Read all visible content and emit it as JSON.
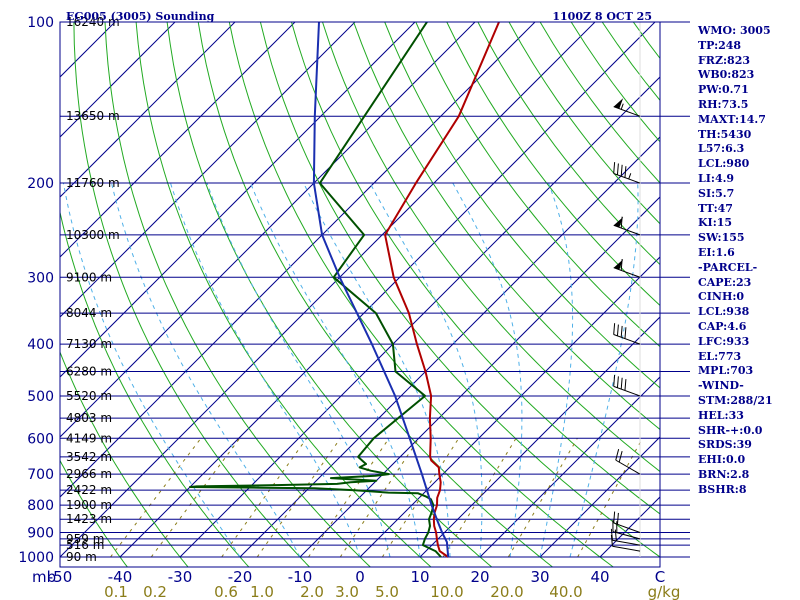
{
  "header": {
    "station_title": "EG005 (3005) Sounding",
    "valid_time": "1100Z  8 OCT 25"
  },
  "indices": [
    "WMO: 3005",
    "TP:248",
    "FRZ:823",
    "WB0:823",
    "PW:0.71",
    "RH:73.5",
    "MAXT:14.7",
    "TH:5430",
    "L57:6.3",
    "LCL:980",
    "LI:4.9",
    "SI:5.7",
    "TT:47",
    "KI:15",
    "SW:155",
    "EI:1.6",
    "-PARCEL-",
    "CAPE:23",
    "CINH:0",
    "LCL:938",
    "CAP:4.6",
    "LFC:933",
    "EL:773",
    "MPL:703",
    "-WIND-",
    "STM:288/21",
    "HEL:33",
    "SHR-+:0.0",
    "SRDS:39",
    "EHI:0.0",
    "BRN:2.8",
    "BSHR:8"
  ],
  "colors": {
    "isobar": "#00008b",
    "isotherm": "#00008b",
    "dry_adiabat": "#22aa22",
    "moist_adiabat": "#4fb0e8",
    "mixing_ratio": "#8b7d1a",
    "temperature": "#b00000",
    "dewpoint": "#005000",
    "parcel": "#1a2fb0",
    "wind": "#000000"
  },
  "chart_data": {
    "type": "line",
    "title": "EG005 (3005) Sounding",
    "axes": {
      "x_label": "C",
      "y_label": "mb",
      "x_range": [
        -50,
        50
      ],
      "y_range": [
        1000,
        100
      ],
      "y_scale": "log",
      "isotherm_skew": "45 degrees"
    },
    "pressure_ticks": [
      100,
      200,
      300,
      400,
      500,
      600,
      700,
      800,
      900,
      1000
    ],
    "temperature_ticks": [
      -50,
      -40,
      -30,
      -20,
      -10,
      0,
      10,
      20,
      30,
      40
    ],
    "temperature_tick_labels": [
      "-50",
      "-40",
      "-30",
      "-20",
      "-10",
      "0",
      "10",
      "20",
      "30",
      "40"
    ],
    "mixing_ratio_labels": [
      "0.1",
      "0.2",
      "0.6",
      "1.0",
      "2.0",
      "3.0",
      "5.0",
      "10.0",
      "20.0",
      "40.0",
      "g/kg"
    ],
    "mixing_ratio_values": [
      0.1,
      0.2,
      0.6,
      1.0,
      2.0,
      3.0,
      5.0,
      10.0,
      20.0,
      40.0
    ],
    "height_labels": [
      {
        "p": 1000,
        "label": "90 m"
      },
      {
        "p": 950,
        "label": "516 m"
      },
      {
        "p": 925,
        "label": "959 m"
      },
      {
        "p": 850,
        "label": "1423 m"
      },
      {
        "p": 800,
        "label": "1900 m"
      },
      {
        "p": 750,
        "label": "2422 m"
      },
      {
        "p": 700,
        "label": "2966 m"
      },
      {
        "p": 650,
        "label": "3542 m"
      },
      {
        "p": 600,
        "label": "4149 m"
      },
      {
        "p": 550,
        "label": "4803 m"
      },
      {
        "p": 500,
        "label": "5520 m"
      },
      {
        "p": 450,
        "label": "6280 m"
      },
      {
        "p": 400,
        "label": "7130 m"
      },
      {
        "p": 350,
        "label": "8044 m"
      },
      {
        "p": 300,
        "label": "9100 m"
      },
      {
        "p": 250,
        "label": "10300 m"
      },
      {
        "p": 200,
        "label": "11760 m"
      },
      {
        "p": 150,
        "label": "13650 m"
      },
      {
        "p": 100,
        "label": "16240 m"
      }
    ],
    "series": [
      {
        "name": "Temperature",
        "points": [
          [
            1000,
            14.7
          ],
          [
            975,
            12.3
          ],
          [
            950,
            11.0
          ],
          [
            925,
            9.8
          ],
          [
            900,
            8.6
          ],
          [
            875,
            7.2
          ],
          [
            850,
            6.0
          ],
          [
            825,
            5.0
          ],
          [
            800,
            4.2
          ],
          [
            775,
            3.0
          ],
          [
            750,
            2.2
          ],
          [
            725,
            1.0
          ],
          [
            700,
            -0.6
          ],
          [
            680,
            -1.8
          ],
          [
            660,
            -4.2
          ],
          [
            650,
            -5.0
          ],
          [
            600,
            -8.0
          ],
          [
            550,
            -11.5
          ],
          [
            500,
            -15.0
          ],
          [
            450,
            -20.0
          ],
          [
            400,
            -26.0
          ],
          [
            350,
            -32.5
          ],
          [
            300,
            -41.0
          ],
          [
            250,
            -49.5
          ],
          [
            200,
            -53.0
          ],
          [
            150,
            -57.0
          ],
          [
            100,
            -66.0
          ]
        ]
      },
      {
        "name": "Dewpoint",
        "points": [
          [
            1000,
            13.5
          ],
          [
            975,
            11.6
          ],
          [
            950,
            8.5
          ],
          [
            925,
            7.8
          ],
          [
            900,
            7.3
          ],
          [
            875,
            6.5
          ],
          [
            850,
            5.2
          ],
          [
            825,
            4.5
          ],
          [
            800,
            3.6
          ],
          [
            780,
            2.2
          ],
          [
            770,
            0.8
          ],
          [
            760,
            -1.0
          ],
          [
            758,
            -6.0
          ],
          [
            750,
            -12.0
          ],
          [
            744,
            -19.0
          ],
          [
            742,
            -28.0
          ],
          [
            740,
            -40.0
          ],
          [
            738,
            -39.0
          ],
          [
            734,
            -26.0
          ],
          [
            730,
            -16.0
          ],
          [
            725,
            -14.0
          ],
          [
            720,
            -10.0
          ],
          [
            712,
            -18.0
          ],
          [
            705,
            -11.0
          ],
          [
            700,
            -9.0
          ],
          [
            690,
            -12.5
          ],
          [
            680,
            -15.0
          ],
          [
            670,
            -14.5
          ],
          [
            650,
            -17.0
          ],
          [
            600,
            -17.5
          ],
          [
            500,
            -16.0
          ],
          [
            450,
            -25.0
          ],
          [
            400,
            -30.0
          ],
          [
            350,
            -38.0
          ],
          [
            300,
            -51.0
          ],
          [
            250,
            -53.0
          ],
          [
            200,
            -69.0
          ],
          [
            100,
            -78.0
          ]
        ]
      },
      {
        "name": "Parcel",
        "points": [
          [
            1000,
            14.7
          ],
          [
            938,
            12.0
          ],
          [
            900,
            9.6
          ],
          [
            850,
            6.5
          ],
          [
            800,
            3.3
          ],
          [
            700,
            -3.5
          ],
          [
            600,
            -11.5
          ],
          [
            500,
            -21.0
          ],
          [
            400,
            -33.5
          ],
          [
            300,
            -50.0
          ],
          [
            250,
            -60.0
          ],
          [
            200,
            -70.0
          ],
          [
            150,
            -81.0
          ],
          [
            100,
            -96.0
          ]
        ]
      }
    ],
    "wind_barbs": [
      {
        "p": 975,
        "dir": 280,
        "spd": 10
      },
      {
        "p": 950,
        "dir": 280,
        "spd": 20
      },
      {
        "p": 925,
        "dir": 285,
        "spd": 20
      },
      {
        "p": 900,
        "dir": 290,
        "spd": 20
      },
      {
        "p": 700,
        "dir": 300,
        "spd": 20
      },
      {
        "p": 500,
        "dir": 290,
        "spd": 40
      },
      {
        "p": 400,
        "dir": 290,
        "spd": 40
      },
      {
        "p": 300,
        "dir": 290,
        "spd": 60
      },
      {
        "p": 250,
        "dir": 290,
        "spd": 60
      },
      {
        "p": 200,
        "dir": 290,
        "spd": 45
      },
      {
        "p": 150,
        "dir": 290,
        "spd": 55
      }
    ],
    "grid": true,
    "legend": "none"
  }
}
